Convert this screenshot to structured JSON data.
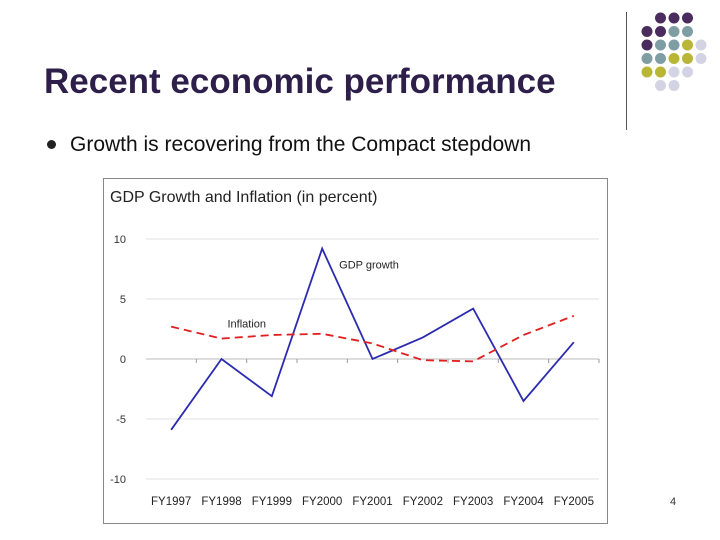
{
  "slide": {
    "title": "Recent economic performance",
    "bullet": "Growth is recovering from the Compact stepdown",
    "page_number": "4"
  },
  "decor": {
    "dot_grid": [
      [
        "",
        "purple",
        "purple",
        "purple",
        ""
      ],
      [
        "purple",
        "purple",
        "teal",
        "teal",
        ""
      ],
      [
        "purple",
        "teal",
        "teal",
        "olive",
        "lavender"
      ],
      [
        "teal",
        "teal",
        "olive",
        "olive",
        "lavender"
      ],
      [
        "olive",
        "olive",
        "lavender",
        "lavender",
        ""
      ],
      [
        "",
        "lavender",
        "lavender",
        "",
        ""
      ]
    ],
    "colors": {
      "purple": "#4a2d5e",
      "teal": "#7f9ea3",
      "olive": "#b9b635",
      "lavender": "#d4d3e4"
    }
  },
  "chart_data": {
    "type": "line",
    "title": "GDP Growth and Inflation (in percent)",
    "categories": [
      "FY1997",
      "FY1998",
      "FY1999",
      "FY2000",
      "FY2001",
      "FY2002",
      "FY2003",
      "FY2004",
      "FY2005"
    ],
    "ylim": [
      -10,
      10
    ],
    "yticks": [
      "10",
      "5",
      "0",
      "-5",
      "-10"
    ],
    "ytick_values": [
      10,
      5,
      0,
      -5,
      -10
    ],
    "series": [
      {
        "name": "GDP growth",
        "color": "#2b2bb0",
        "dash": "solid",
        "values": [
          -5.9,
          0.0,
          -3.1,
          9.2,
          0.0,
          1.8,
          4.2,
          -3.5,
          1.4
        ]
      },
      {
        "name": "Inflation",
        "color": "#e02020",
        "dash": "dashed",
        "values": [
          2.7,
          1.7,
          2.0,
          2.1,
          1.3,
          -0.1,
          -0.2,
          2.0,
          3.6
        ]
      }
    ],
    "grid": true
  }
}
